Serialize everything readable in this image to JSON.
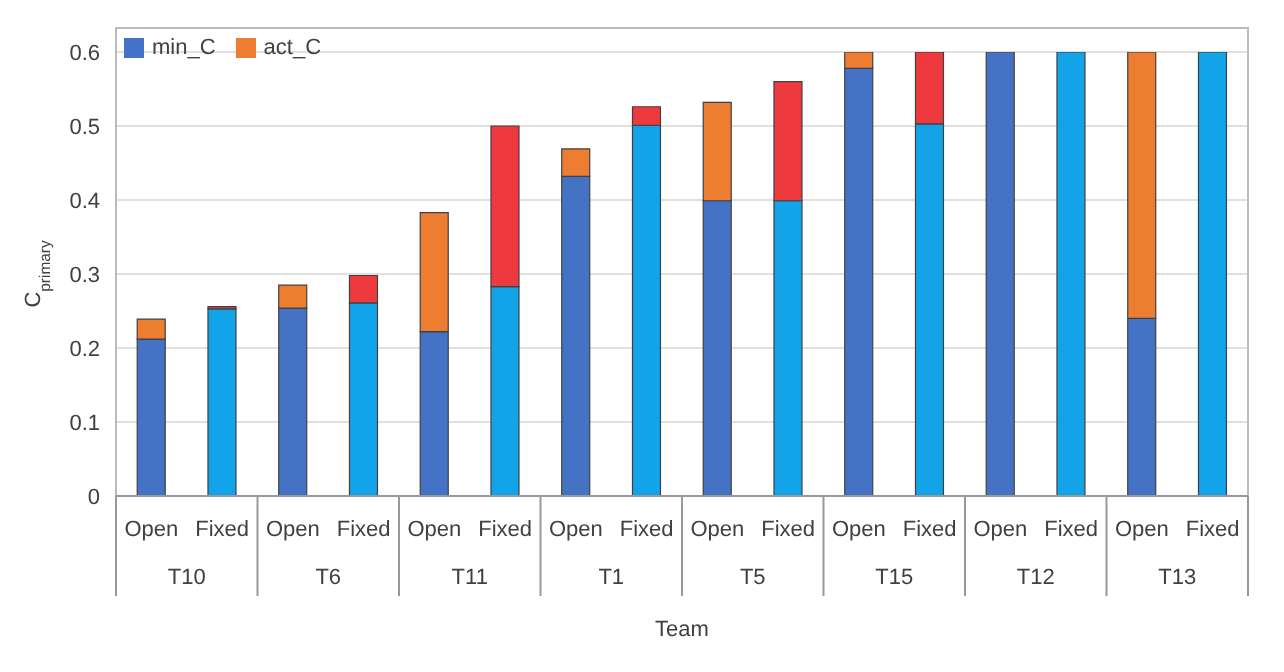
{
  "chart_data": {
    "type": "bar",
    "stacked": true,
    "xlabel": "Team",
    "ylabel": "C$_{primary}$",
    "categories": [
      "Open",
      "Fixed",
      "Open",
      "Fixed",
      "Open",
      "Fixed",
      "Open",
      "Fixed",
      "Open",
      "Fixed",
      "Open",
      "Fixed",
      "Open",
      "Fixed",
      "Open",
      "Fixed"
    ],
    "annotations": [
      "T10",
      "T6",
      "T11",
      "T1",
      "T5",
      "T15",
      "T12",
      "T13"
    ],
    "series": [
      {
        "name": "min_C",
        "color": "#4472c4",
        "colors": [
          "#4472c4",
          "#12a3e8",
          "#4472c4",
          "#12a3e8",
          "#4472c4",
          "#12a3e8",
          "#4472c4",
          "#12a3e8",
          "#4472c4",
          "#12a3e8",
          "#4472c4",
          "#12a3e8",
          "#4472c4",
          "#12a3e8",
          "#4472c4",
          "#12a3e8"
        ],
        "values": [
          0.212,
          0.253,
          0.254,
          0.261,
          0.222,
          0.283,
          0.432,
          0.501,
          0.399,
          0.399,
          0.578,
          0.503,
          0.6,
          0.6,
          0.24,
          0.6
        ]
      },
      {
        "name": "act_C",
        "color": "#ed7d31",
        "colors": [
          "#ed7d31",
          "#ee3a3e",
          "#ed7d31",
          "#ee3a3e",
          "#ed7d31",
          "#ee3a3e",
          "#ed7d31",
          "#ee3a3e",
          "#ed7d31",
          "#ee3a3e",
          "#ed7d31",
          "#ee3a3e",
          "#ed7d31",
          "#ee3a3e",
          "#ed7d31",
          "#ee3a3e"
        ],
        "values": [
          0.027,
          0.003,
          0.031,
          0.037,
          0.161,
          0.217,
          0.037,
          0.025,
          0.133,
          0.161,
          0.022,
          0.097,
          null,
          null,
          0.36,
          null
        ]
      }
    ],
    "ylim": [
      0,
      0.6
    ],
    "yticks": [
      0,
      0.1,
      0.2,
      0.3,
      0.4,
      0.5,
      0.6
    ],
    "grid": "y",
    "legend": "top left"
  }
}
